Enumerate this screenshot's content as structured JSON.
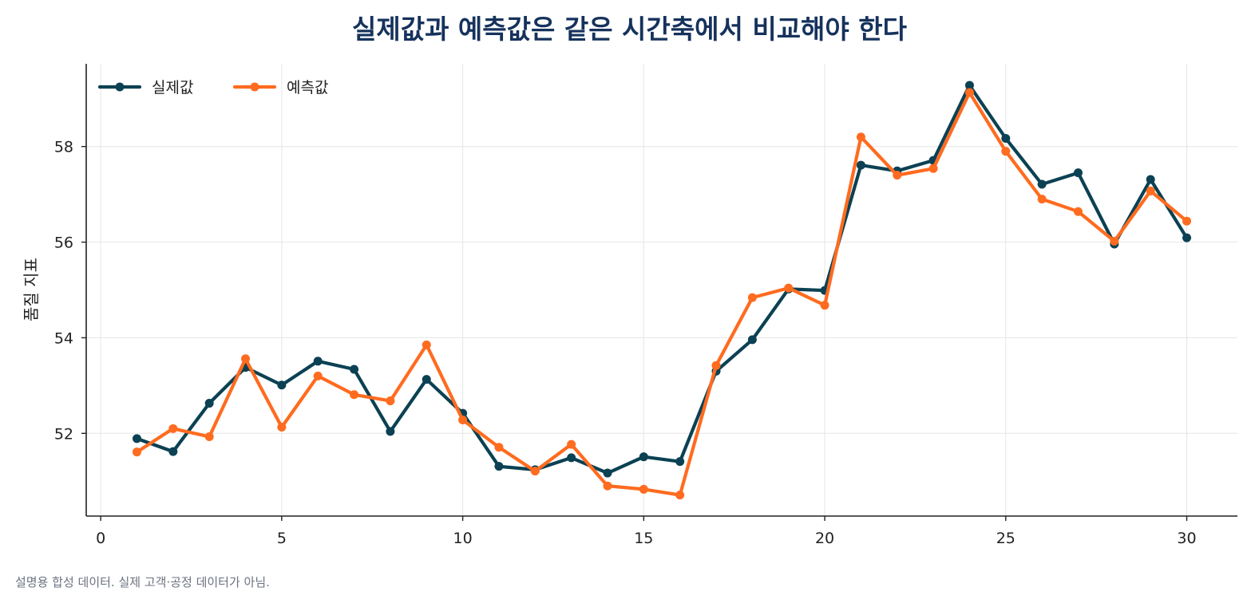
{
  "chart_data": {
    "type": "line",
    "title": "실제값과 예측값은 같은 시간축에서 비교해야 한다",
    "xlabel": "",
    "ylabel": "품질 지표",
    "x": [
      1,
      2,
      3,
      4,
      5,
      6,
      7,
      8,
      9,
      10,
      11,
      12,
      13,
      14,
      15,
      16,
      17,
      18,
      19,
      20,
      21,
      22,
      23,
      24,
      25,
      26,
      27,
      28,
      29,
      30
    ],
    "xlim": [
      -0.4,
      31.4
    ],
    "ylim": [
      50.27,
      59.73
    ],
    "xticks": [
      0,
      5,
      10,
      15,
      20,
      25,
      30
    ],
    "yticks": [
      52,
      54,
      56,
      58
    ],
    "grid": true,
    "legend_position": "top-left",
    "series": [
      {
        "name": "실제값",
        "color": "#0b4153",
        "values": [
          51.89,
          51.62,
          52.63,
          53.38,
          53.01,
          53.51,
          53.34,
          52.04,
          53.13,
          52.42,
          51.31,
          51.24,
          51.49,
          51.17,
          51.51,
          51.41,
          53.3,
          53.96,
          55.02,
          54.99,
          57.61,
          57.49,
          57.71,
          59.28,
          58.17,
          57.21,
          57.45,
          55.96,
          57.31,
          56.09
        ]
      },
      {
        "name": "예측값",
        "color": "#ff6b1f",
        "values": [
          51.61,
          52.1,
          51.93,
          53.56,
          52.13,
          53.2,
          52.81,
          52.68,
          53.85,
          52.28,
          51.71,
          51.21,
          51.77,
          50.9,
          50.83,
          50.71,
          53.42,
          54.84,
          55.04,
          54.68,
          58.2,
          57.4,
          57.54,
          59.13,
          57.9,
          56.9,
          56.64,
          56.02,
          57.07,
          56.44
        ]
      }
    ]
  },
  "footnote": "설명용 합성 데이터. 실제 고객·공정 데이터가 아님."
}
